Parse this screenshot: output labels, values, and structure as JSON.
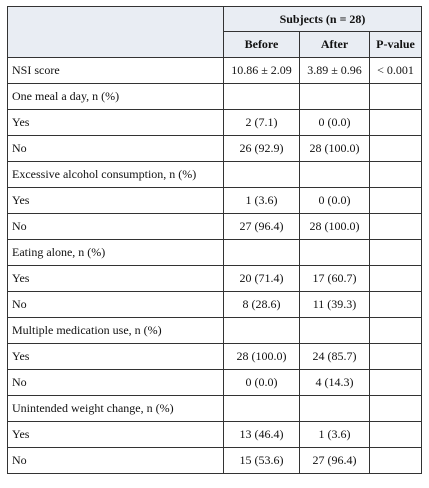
{
  "header": {
    "group": "Subjects (n = 28)",
    "before": "Before",
    "after": "After",
    "pvalue": "P-value"
  },
  "rows": [
    {
      "label": "NSI score",
      "before": "10.86 ± 2.09",
      "after": "3.89 ± 0.96",
      "p": "< 0.001"
    },
    {
      "label": "One meal a day, n (%)",
      "before": "",
      "after": "",
      "p": ""
    },
    {
      "label": "Yes",
      "before": "2 (7.1)",
      "after": "0 (0.0)",
      "p": ""
    },
    {
      "label": "No",
      "before": "26 (92.9)",
      "after": "28 (100.0)",
      "p": ""
    },
    {
      "label": "Excessive alcohol consumption, n (%)",
      "before": "",
      "after": "",
      "p": ""
    },
    {
      "label": "Yes",
      "before": "1 (3.6)",
      "after": "0 (0.0)",
      "p": ""
    },
    {
      "label": "No",
      "before": "27 (96.4)",
      "after": "28 (100.0)",
      "p": ""
    },
    {
      "label": "Eating alone, n (%)",
      "before": "",
      "after": "",
      "p": ""
    },
    {
      "label": "Yes",
      "before": "20 (71.4)",
      "after": "17 (60.7)",
      "p": ""
    },
    {
      "label": "No",
      "before": "8 (28.6)",
      "after": "11 (39.3)",
      "p": ""
    },
    {
      "label": "Multiple medication use, n (%)",
      "before": "",
      "after": "",
      "p": ""
    },
    {
      "label": "Yes",
      "before": "28 (100.0)",
      "after": "24 (85.7)",
      "p": ""
    },
    {
      "label": "No",
      "before": "0 (0.0)",
      "after": "4 (14.3)",
      "p": ""
    },
    {
      "label": "Unintended weight change, n (%)",
      "before": "",
      "after": "",
      "p": ""
    },
    {
      "label": "Yes",
      "before": "13 (46.4)",
      "after": "1 (3.6)",
      "p": ""
    },
    {
      "label": "No",
      "before": "15 (53.6)",
      "after": "27 (96.4)",
      "p": ""
    }
  ]
}
